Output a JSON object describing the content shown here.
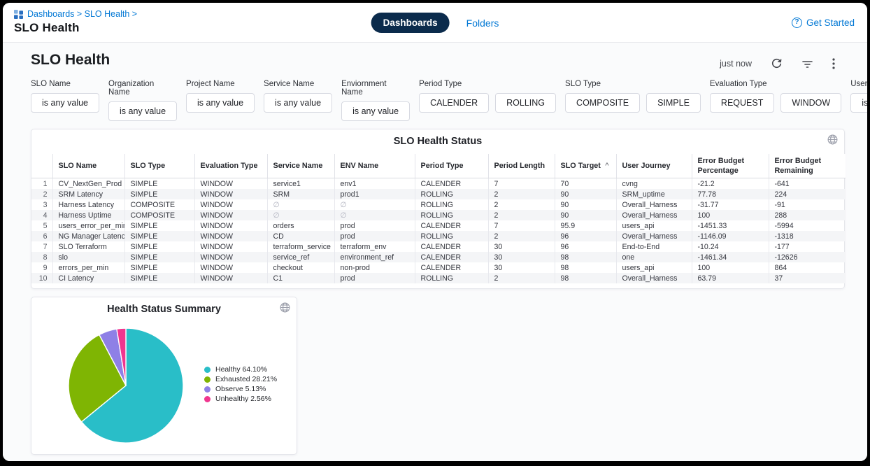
{
  "colors": {
    "accent_blue": "#0278d5",
    "navy_pill": "#0b2b4c",
    "stripe": "#f4f5f7"
  },
  "topbar": {
    "breadcrumb": "Dashboards > SLO Health >",
    "title": "SLO Health",
    "tab_active": "Dashboards",
    "tab_inactive": "Folders",
    "get_started": "Get Started",
    "question_glyph": "?"
  },
  "header": {
    "title": "SLO Health",
    "refreshed": "just now"
  },
  "filters": [
    {
      "label": "SLO Name",
      "chips": [
        "is any value"
      ]
    },
    {
      "label": "Organization Name",
      "chips": [
        "is any value"
      ]
    },
    {
      "label": "Project Name",
      "chips": [
        "is any value"
      ]
    },
    {
      "label": "Service Name",
      "chips": [
        "is any value"
      ]
    },
    {
      "label": "Enviornment Name",
      "chips": [
        "is any value"
      ]
    },
    {
      "label": "Period Type",
      "chips": [
        "CALENDER",
        "ROLLING"
      ]
    },
    {
      "label": "SLO Type",
      "chips": [
        "COMPOSITE",
        "SIMPLE"
      ]
    },
    {
      "label": "Evaluation Type",
      "chips": [
        "REQUEST",
        "WINDOW"
      ]
    },
    {
      "label": "User Journey",
      "chips": [
        "is any value"
      ]
    }
  ],
  "table": {
    "title": "SLO Health Status",
    "columns": [
      "SLO Name",
      "SLO Type",
      "Evaluation Type",
      "Service Name",
      "ENV Name",
      "Period Type",
      "Period Length",
      "SLO Target",
      "User Journey",
      "Error Budget Percentage",
      "Error Budget Remaining"
    ],
    "sort_column": "SLO Target",
    "sort_indicator": "^",
    "null_symbol": "∅",
    "rows": [
      [
        "CV_NextGen_Prod",
        "SIMPLE",
        "WINDOW",
        "service1",
        "env1",
        "CALENDER",
        "7",
        "70",
        "cvng",
        "-21.2",
        "-641"
      ],
      [
        "SRM Latency",
        "SIMPLE",
        "WINDOW",
        "SRM",
        "prod1",
        "ROLLING",
        "2",
        "90",
        "SRM_uptime",
        "77.78",
        "224"
      ],
      [
        "Harness Latency",
        "COMPOSITE",
        "WINDOW",
        "∅",
        "∅",
        "ROLLING",
        "2",
        "90",
        "Overall_Harness",
        "-31.77",
        "-91"
      ],
      [
        "Harness Uptime",
        "COMPOSITE",
        "WINDOW",
        "∅",
        "∅",
        "ROLLING",
        "2",
        "90",
        "Overall_Harness",
        "100",
        "288"
      ],
      [
        "users_error_per_min",
        "SIMPLE",
        "WINDOW",
        "orders",
        "prod",
        "CALENDER",
        "7",
        "95.9",
        "users_api",
        "-1451.33",
        "-5994"
      ],
      [
        "NG Manager Latency",
        "SIMPLE",
        "WINDOW",
        "CD",
        "prod",
        "ROLLING",
        "2",
        "96",
        "Overall_Harness",
        "-1146.09",
        "-1318"
      ],
      [
        "SLO Terraform",
        "SIMPLE",
        "WINDOW",
        "terraform_service",
        "terraform_env",
        "CALENDER",
        "30",
        "96",
        "End-to-End",
        "-10.24",
        "-177"
      ],
      [
        "slo",
        "SIMPLE",
        "WINDOW",
        "service_ref",
        "environment_ref",
        "CALENDER",
        "30",
        "98",
        "one",
        "-1461.34",
        "-12626"
      ],
      [
        "errors_per_min",
        "SIMPLE",
        "WINDOW",
        "checkout",
        "non-prod",
        "CALENDER",
        "30",
        "98",
        "users_api",
        "100",
        "864"
      ],
      [
        "CI Latency",
        "SIMPLE",
        "WINDOW",
        "C1",
        "prod",
        "ROLLING",
        "2",
        "98",
        "Overall_Harness",
        "63.79",
        "37"
      ]
    ]
  },
  "chart_data": {
    "type": "pie",
    "title": "Health Status Summary",
    "labels": [
      "Healthy",
      "Exhausted",
      "Observe",
      "Unhealthy"
    ],
    "values": [
      64.1,
      28.21,
      5.13,
      2.56
    ],
    "colors": [
      "#29bec8",
      "#7fb503",
      "#8e80e6",
      "#f0368f"
    ],
    "legend": [
      "Healthy 64.10%",
      "Exhausted 28.21%",
      "Observe 5.13%",
      "Unhealthy 2.56%"
    ],
    "legend_position": "right",
    "start_angle_deg": 0,
    "direction": "clockwise"
  }
}
